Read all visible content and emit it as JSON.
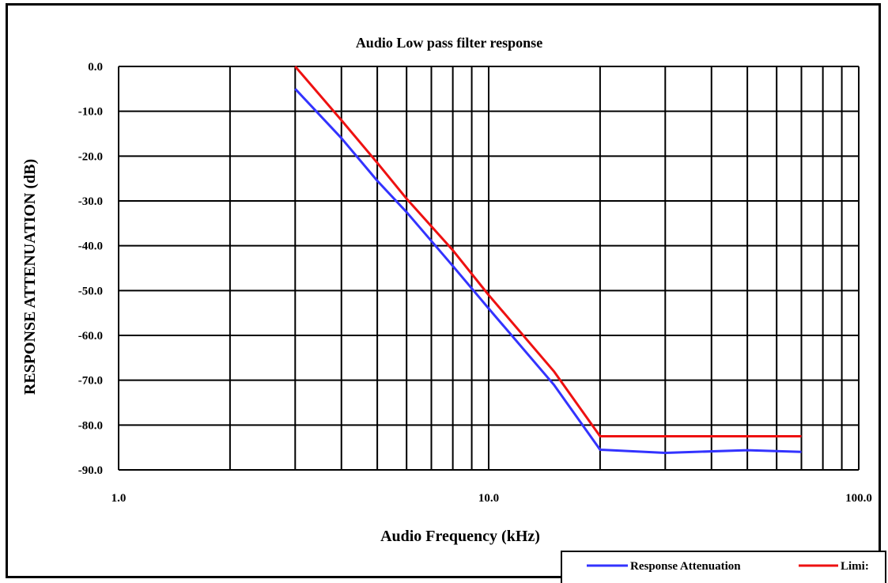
{
  "chart_data": {
    "type": "line",
    "title": "Audio Low pass filter response",
    "xlabel": "Audio Frequency (kHz)",
    "ylabel": "RESPONSE ATTENUATION (dB)",
    "x_scale": "log",
    "xlim": [
      1.0,
      100.0
    ],
    "ylim": [
      -90.0,
      0.0
    ],
    "x_tick_labels": [
      "1.0",
      "10.0",
      "100.0"
    ],
    "y_tick_labels": [
      "0.0",
      "-10.0",
      "-20.0",
      "-30.0",
      "-40.0",
      "-50.0",
      "-60.0",
      "-70.0",
      "-80.0",
      "-90.0"
    ],
    "grid": true,
    "legend_position": "bottom-right",
    "series": [
      {
        "name": "Response Attenuation",
        "color": "#3333ff",
        "x": [
          3,
          4,
          5,
          6,
          8,
          10,
          15,
          20,
          30,
          50,
          70
        ],
        "y": [
          -5,
          -16,
          -25.5,
          -32.5,
          -44.5,
          -54,
          -71,
          -85.5,
          -86.2,
          -85.6,
          -86
        ]
      },
      {
        "name": "Limit",
        "color": "#ee1111",
        "x": [
          3,
          4,
          5,
          6,
          8,
          10,
          15,
          20,
          30,
          50,
          70
        ],
        "y": [
          0,
          -12,
          -21.5,
          -29.5,
          -41,
          -51,
          -68,
          -82.5,
          -82.5,
          -82.5,
          -82.5
        ]
      }
    ]
  },
  "legend": {
    "series_1_label": "Response Attenuation",
    "series_2_label": "Limi:"
  }
}
